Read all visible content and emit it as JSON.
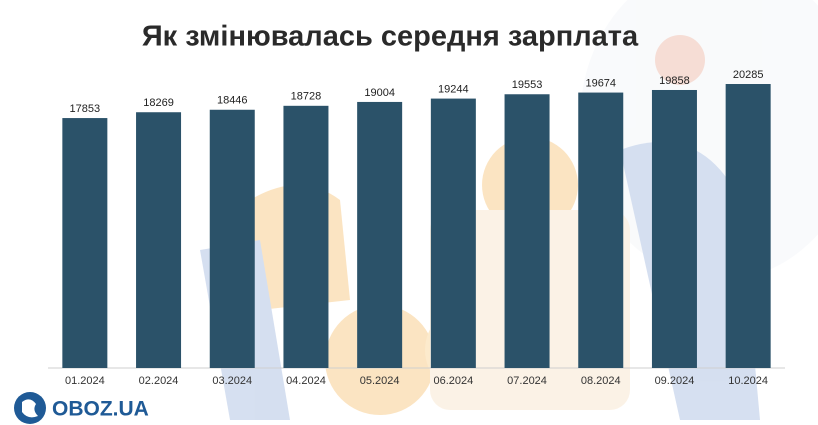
{
  "chart_data": {
    "type": "bar",
    "title": "Як змінювалась середня зарплата",
    "categories": [
      "01.2024",
      "02.2024",
      "03.2024",
      "04.2024",
      "05.2024",
      "06.2024",
      "07.2024",
      "08.2024",
      "09.2024",
      "10.2024"
    ],
    "values": [
      17853,
      18269,
      18446,
      18728,
      19004,
      19244,
      19553,
      19674,
      19858,
      20285
    ],
    "color": "#2b5269",
    "ylim": [
      0,
      26000
    ]
  },
  "logo": "OBOZ.UA"
}
